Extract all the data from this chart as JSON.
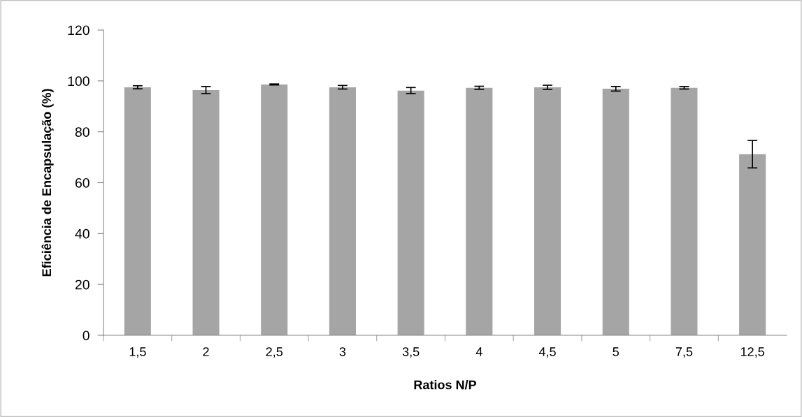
{
  "chart_data": {
    "type": "bar",
    "xlabel": "Ratios N/P",
    "ylabel": "Eficiência de Encapsulação (%)",
    "categories": [
      "1,5",
      "2",
      "2,5",
      "3",
      "3,5",
      "4",
      "4,5",
      "5",
      "7,5",
      "12,5"
    ],
    "values": [
      97.5,
      96.4,
      98.6,
      97.5,
      96.2,
      97.3,
      97.5,
      96.9,
      97.3,
      71.2
    ],
    "errors": [
      0.6,
      1.4,
      0.2,
      0.7,
      1.2,
      0.6,
      0.8,
      0.9,
      0.5,
      5.4
    ],
    "color": "#a5a5a5",
    "ylim": [
      0,
      120
    ],
    "yticks": [
      0,
      20,
      40,
      60,
      80,
      100,
      120
    ],
    "grid": false
  }
}
